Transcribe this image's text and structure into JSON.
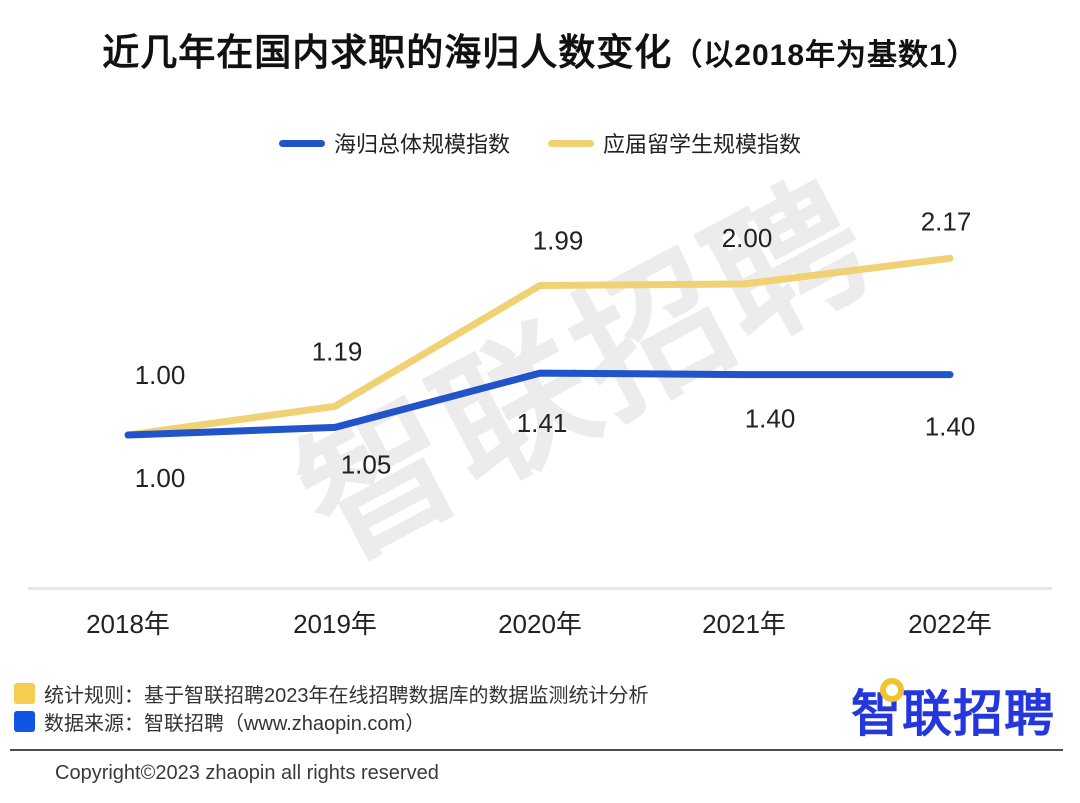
{
  "title": {
    "main": "近几年在国内求职的海归人数变化",
    "suffix": "（以2018年为基数1）"
  },
  "legend": {
    "items": [
      {
        "label": "海归总体规模指数",
        "color": "#2153cb"
      },
      {
        "label": "应届留学生规模指数",
        "color": "#f0d173"
      }
    ]
  },
  "watermark": "智联招聘",
  "chart_data": {
    "type": "line",
    "title": "近几年在国内求职的海归人数变化（以2018年为基数1）",
    "categories": [
      "2018年",
      "2019年",
      "2020年",
      "2021年",
      "2022年"
    ],
    "series": [
      {
        "name": "海归总体规模指数",
        "color": "#2153cb",
        "values": [
          1.0,
          1.05,
          1.41,
          1.4,
          1.4
        ]
      },
      {
        "name": "应届留学生规模指数",
        "color": "#f0d173",
        "values": [
          1.0,
          1.19,
          1.99,
          2.0,
          2.17
        ]
      }
    ],
    "value_labels": true,
    "value_label_format": "0.00",
    "grid": false,
    "legend_position": "top-center",
    "ylim": [
      1.0,
      2.3
    ],
    "x_axis_line": true
  },
  "footer": {
    "notes": [
      {
        "swatch_color": "#f6cd4e",
        "text": "统计规则：基于智联招聘2023年在线招聘数据库的数据监测统计分析"
      },
      {
        "swatch_color": "#0f56e6",
        "text": "数据来源：智联招聘（www.zhaopin.com）"
      }
    ],
    "logo_text": "智联招聘",
    "logo_color": "#2337dd",
    "copyright": "Copyright©2023 zhaopin all rights reserved"
  }
}
